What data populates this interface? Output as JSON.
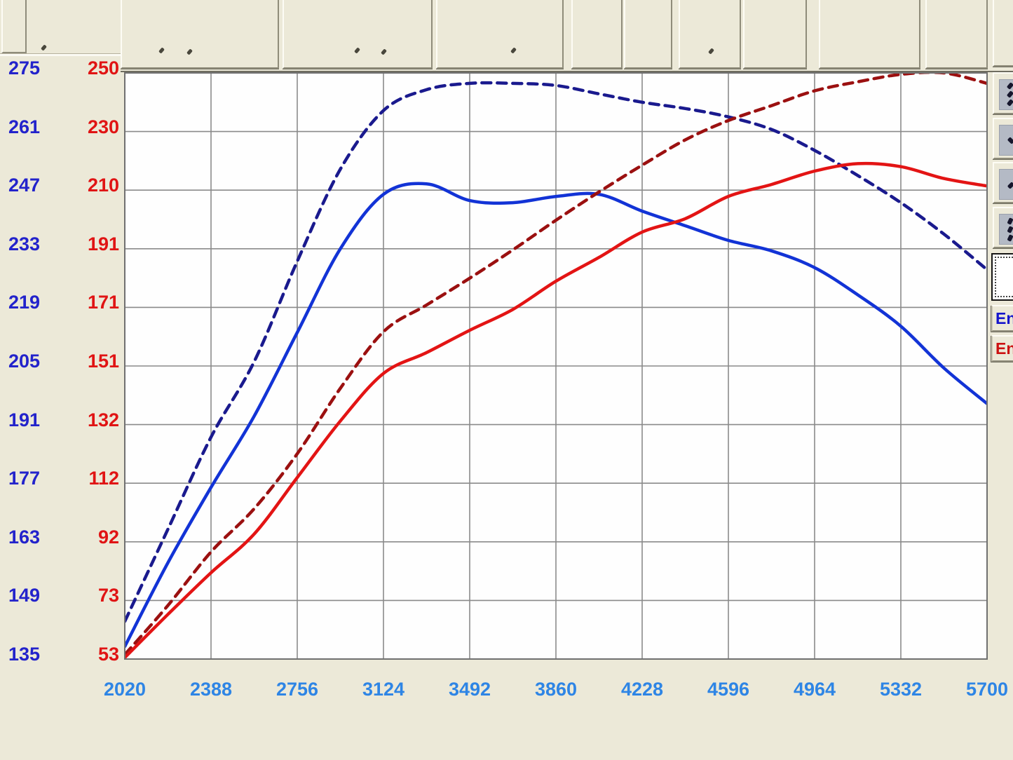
{
  "axes": {
    "left_blue": {
      "labels": [
        275,
        261,
        247,
        233,
        219,
        205,
        191,
        177,
        163,
        149,
        135
      ],
      "color": "#2323cb"
    },
    "left_red": {
      "labels": [
        250,
        230,
        210,
        191,
        171,
        151,
        132,
        112,
        92,
        73,
        53
      ],
      "color": "#e01414"
    },
    "x_rpm": {
      "labels": [
        2020,
        2388,
        2756,
        3124,
        3492,
        3860,
        4228,
        4596,
        4964,
        5332,
        5700
      ],
      "color": "#2e85e5"
    }
  },
  "chart_data": {
    "type": "line",
    "x_range": [
      2020,
      5700
    ],
    "left_blue_axis_range": [
      135,
      275
    ],
    "right_red_axis_range": [
      53,
      250
    ],
    "grid": true,
    "x": [
      2020,
      2204,
      2388,
      2572,
      2756,
      2940,
      3124,
      3308,
      3492,
      3676,
      3860,
      4044,
      4228,
      4412,
      4596,
      4780,
      4964,
      5148,
      5332,
      5516,
      5700
    ],
    "series": [
      {
        "name": "blue-dashed-run",
        "axis": "left_blue",
        "style": "dashed",
        "color": "#1a1a8e",
        "values": [
          144,
          166,
          188,
          206,
          230,
          252,
          266,
          271,
          272.5,
          272.5,
          272,
          270,
          268,
          266.5,
          264.5,
          261.5,
          256.5,
          250.5,
          244,
          236.5,
          228
        ]
      },
      {
        "name": "blue-solid-run",
        "axis": "left_blue",
        "style": "solid",
        "color": "#1233d6",
        "values": [
          138,
          158,
          176,
          193,
          213,
          233,
          246,
          248.5,
          244.5,
          244,
          245.5,
          246,
          242,
          238.5,
          235,
          232.5,
          228.5,
          222,
          214.5,
          204.5,
          196
        ]
      },
      {
        "name": "red-dashed-run",
        "axis": "right_red",
        "style": "dashed",
        "color": "#9b1010",
        "values": [
          54.5,
          71,
          89,
          103.5,
          122,
          144,
          163,
          172,
          181,
          190.5,
          200.5,
          210,
          219,
          227.5,
          234,
          239,
          244,
          247,
          249.5,
          250,
          246.5
        ]
      },
      {
        "name": "red-solid-run",
        "axis": "right_red",
        "style": "solid",
        "color": "#e31414",
        "values": [
          53.5,
          68,
          82,
          95,
          114,
          133,
          149,
          156,
          163.5,
          170.5,
          180,
          188,
          196.5,
          201,
          208.5,
          212.5,
          217,
          219.5,
          218.5,
          214.5,
          212
        ]
      }
    ]
  },
  "side_panel": {
    "buttons": [
      {
        "icon": "pan-diagonal-arrow-icon"
      },
      {
        "icon": "zoom-arrow-icon"
      },
      {
        "icon": "arrow-down-right-icon"
      },
      {
        "icon": "scroll-arrows-icon"
      }
    ],
    "selection_box": {
      "label": ""
    },
    "legend": [
      {
        "label": "En",
        "color": "#1515cc"
      },
      {
        "label": "En",
        "color": "#cc1111"
      }
    ]
  },
  "colors": {
    "background": "#ece9d8",
    "plot_background": "#fefefe",
    "gridline": "#8a8a8a",
    "plot_border": "#707070"
  }
}
